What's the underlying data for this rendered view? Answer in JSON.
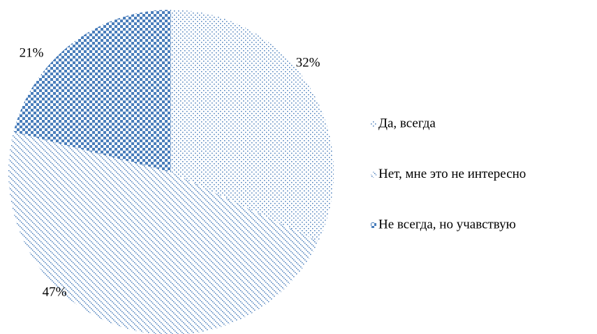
{
  "chart_data": {
    "type": "pie",
    "categories": [
      "Да, всегда",
      "Нет, мне это не интересно",
      "Не всегда, но учавствую"
    ],
    "values": [
      32,
      47,
      21
    ],
    "value_labels": [
      "32%",
      "47%",
      "21%"
    ],
    "color": "#4a7ebb",
    "legend": "right"
  }
}
